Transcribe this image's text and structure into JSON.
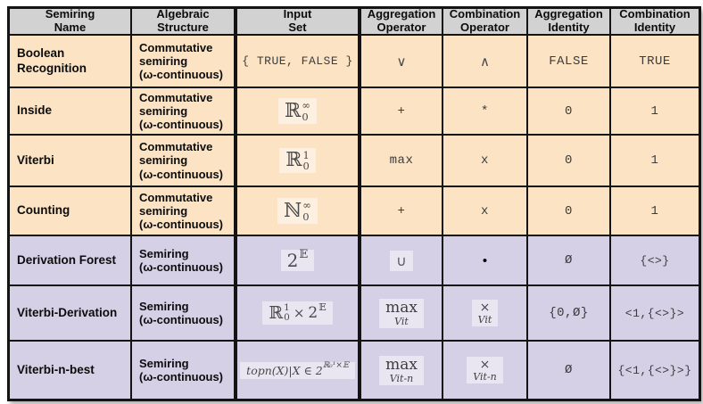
{
  "table": {
    "headers": [
      "Semiring\nName",
      "Algebraic\nStructure",
      "Input\nSet",
      "Aggregation\nOperator",
      "Combination\nOperator",
      "Aggregation\nIdentity",
      "Combination\nIdentity"
    ],
    "rows": [
      {
        "name": "Boolean\nRecognition",
        "structure": "Commutative\nsemiring\n(ω-continuous)",
        "input_set": "{ TRUE, FALSE }",
        "agg_op": "∨",
        "comb_op": "∧",
        "agg_id": "FALSE",
        "comb_id": "TRUE"
      },
      {
        "name": "Inside",
        "structure": "Commutative\nsemiring\n(ω-continuous)",
        "input_set": {
          "base": "ℝ",
          "sup": "∞",
          "sub": "0"
        },
        "agg_op": "+",
        "comb_op": "*",
        "agg_id": "0",
        "comb_id": "1"
      },
      {
        "name": "Viterbi",
        "structure": "Commutative\nsemiring\n(ω-continuous)",
        "input_set": {
          "base": "ℝ",
          "sup": "1",
          "sub": "0"
        },
        "agg_op": "max",
        "comb_op": "x",
        "agg_id": "0",
        "comb_id": "1"
      },
      {
        "name": "Counting",
        "structure": "Commutative\nsemiring\n(ω-continuous)",
        "input_set": {
          "base": "ℕ",
          "sup": "∞",
          "sub": "0"
        },
        "agg_op": "+",
        "comb_op": "x",
        "agg_id": "0",
        "comb_id": "1"
      },
      {
        "name": "Derivation Forest",
        "structure": "Semiring\n(ω-continuous)",
        "input_set": {
          "base": "2",
          "sup": "𝔼"
        },
        "agg_op": "∪",
        "comb_op": "•",
        "agg_id": "Ø",
        "comb_id": "{<>}"
      },
      {
        "name": "Viterbi-Derivation",
        "structure": "Semiring\n(ω-continuous)",
        "input_set": {
          "base": "ℝ",
          "sup": "1",
          "sub": "0",
          "times": "×",
          "base2": "2",
          "sup2": "𝔼"
        },
        "agg_op": {
          "main": "max",
          "sub": "Vit"
        },
        "comb_op": {
          "main": "×",
          "sub": "Vit"
        },
        "agg_id": "{0,Ø}",
        "comb_id": "<1,{<>}>"
      },
      {
        "name": "Viterbi-n-best",
        "structure": "Semiring\n(ω-continuous)",
        "input_set": {
          "prefix": "topn(X)|X ∈ 2",
          "sup": "ℝ₀¹×𝔼"
        },
        "agg_op": {
          "main": "max",
          "sub": "Vit-n"
        },
        "comb_op": {
          "main": "×",
          "sub": "Vit-n"
        },
        "agg_id": "Ø",
        "comb_id": "{<1,{<>}>}"
      }
    ]
  },
  "colors": {
    "header_bg": "#d2d2d2",
    "commutative_row_bg": "#fbe3c4",
    "noncommutative_row_bg": "#d5d0e6",
    "border": "#141414"
  }
}
